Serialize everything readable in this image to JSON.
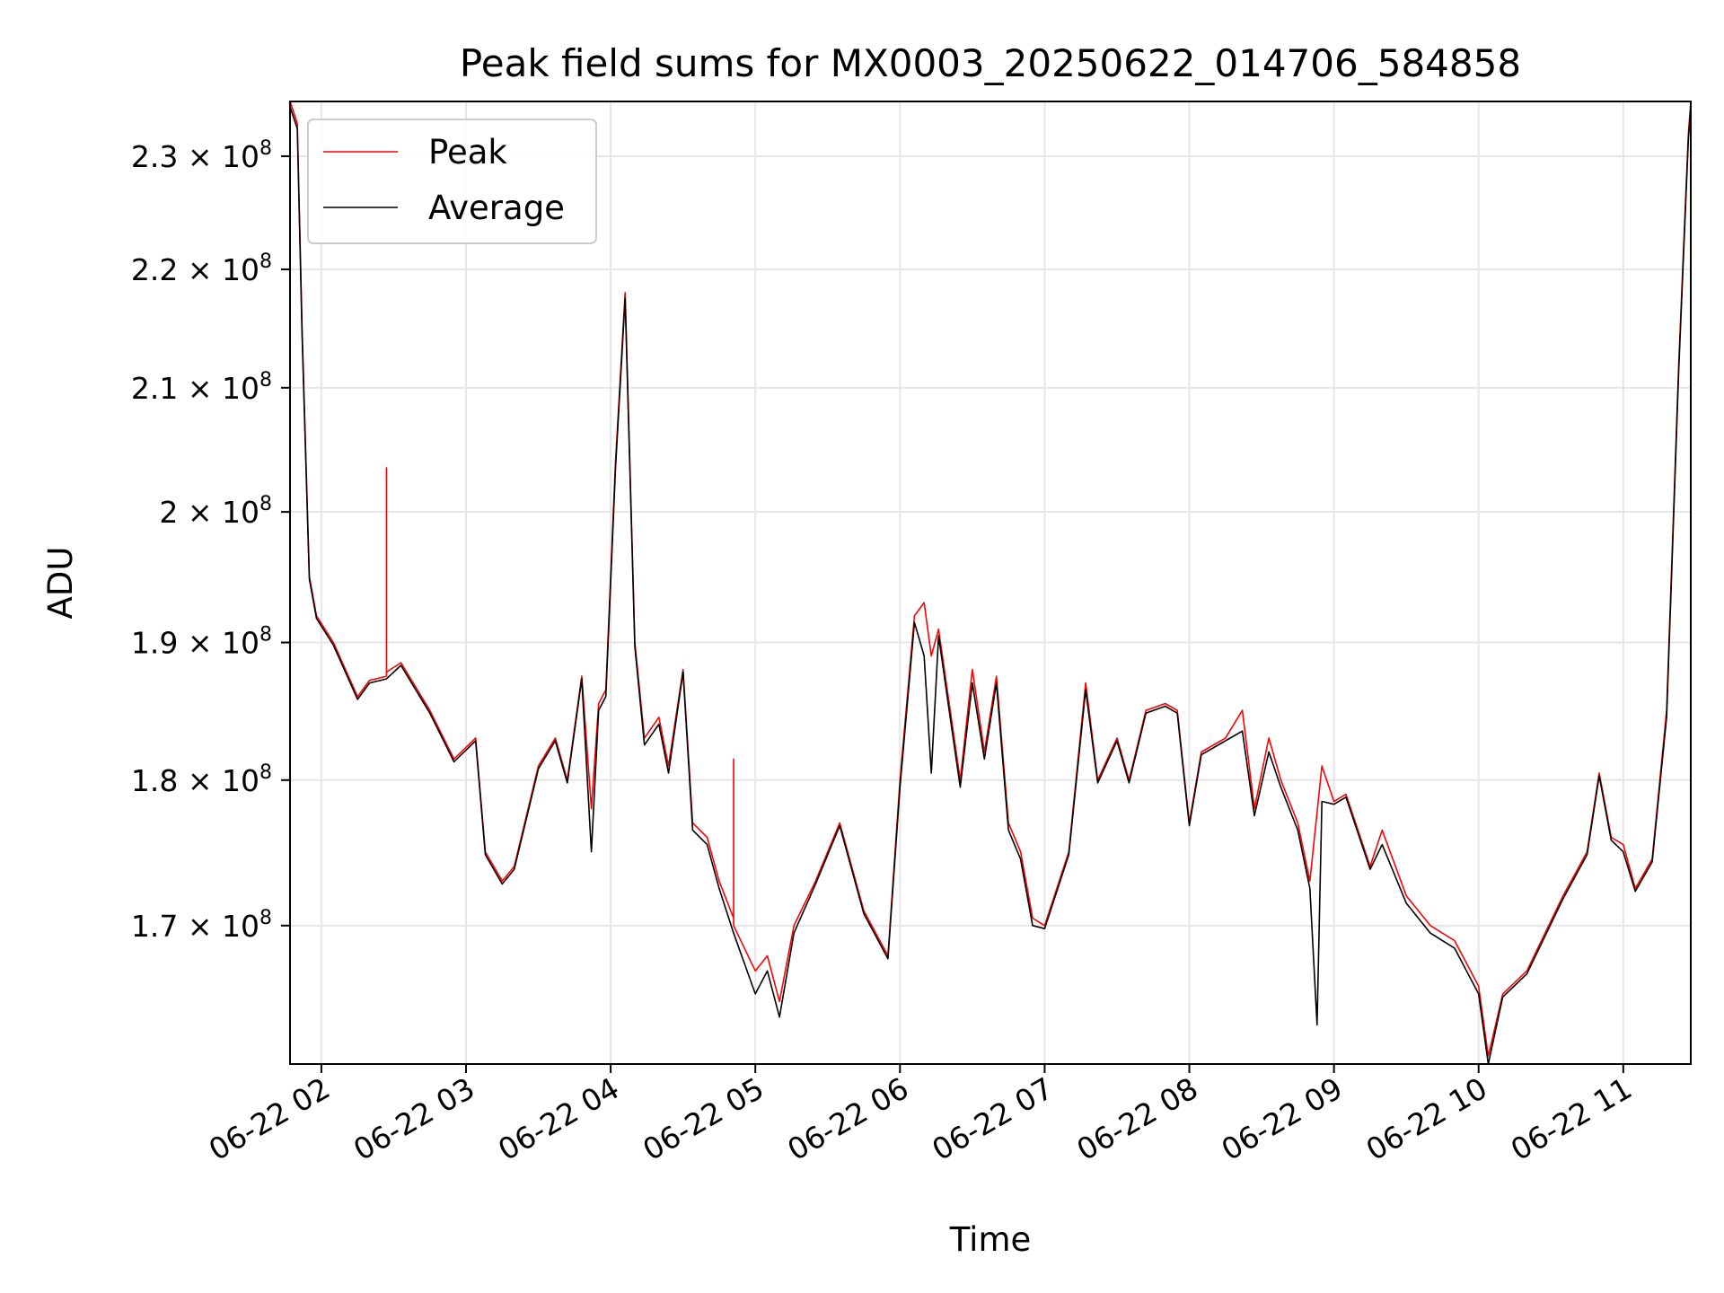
{
  "chart_data": {
    "type": "line",
    "title": "Peak field sums for MX0003_20250622_014706_584858",
    "xlabel": "Time",
    "ylabel": "ADU",
    "x_range": [
      "06-22 01:47",
      "06-22 11:28"
    ],
    "x_ticks": [
      "06-22 02",
      "06-22 03",
      "06-22 04",
      "06-22 05",
      "06-22 06",
      "06-22 07",
      "06-22 08",
      "06-22 09",
      "06-22 10",
      "06-22 11"
    ],
    "y_scale": "log",
    "ylim": [
      161000000,
      235000000
    ],
    "y_ticks": [
      {
        "value": 170000000,
        "coef": "1.7"
      },
      {
        "value": 180000000,
        "coef": "1.8"
      },
      {
        "value": 190000000,
        "coef": "1.9"
      },
      {
        "value": 200000000,
        "coef": "2"
      },
      {
        "value": 210000000,
        "coef": "2.1"
      },
      {
        "value": 220000000,
        "coef": "2.2"
      },
      {
        "value": 230000000,
        "coef": "2.3"
      }
    ],
    "y_tick_base": "10",
    "y_tick_exponent": "8",
    "grid": true,
    "legend_position": "top-left",
    "series": [
      {
        "name": "Peak",
        "color": "#ff0000",
        "points": [
          [
            "06-22 01:47",
            235000000
          ],
          [
            "06-22 01:50",
            233000000
          ],
          [
            "06-22 01:52",
            215000000
          ],
          [
            "06-22 01:55",
            195000000
          ],
          [
            "06-22 01:58",
            192000000
          ],
          [
            "06-22 02:05",
            190000000
          ],
          [
            "06-22 02:15",
            186000000
          ],
          [
            "06-22 02:20",
            187200000
          ],
          [
            "06-22 02:27",
            187500000
          ],
          [
            "06-22 02:27",
            203500000
          ],
          [
            "06-22 02:27",
            187800000
          ],
          [
            "06-22 02:33",
            188500000
          ],
          [
            "06-22 02:45",
            185000000
          ],
          [
            "06-22 02:55",
            181500000
          ],
          [
            "06-22 03:04",
            183000000
          ],
          [
            "06-22 03:08",
            175000000
          ],
          [
            "06-22 03:15",
            173000000
          ],
          [
            "06-22 03:20",
            174000000
          ],
          [
            "06-22 03:30",
            181000000
          ],
          [
            "06-22 03:37",
            183000000
          ],
          [
            "06-22 03:42",
            180000000
          ],
          [
            "06-22 03:48",
            187500000
          ],
          [
            "06-22 03:52",
            178000000
          ],
          [
            "06-22 03:55",
            185500000
          ],
          [
            "06-22 03:58",
            186500000
          ],
          [
            "06-22 04:02",
            204000000
          ],
          [
            "06-22 04:06",
            218000000
          ],
          [
            "06-22 04:10",
            190000000
          ],
          [
            "06-22 04:14",
            183000000
          ],
          [
            "06-22 04:20",
            184500000
          ],
          [
            "06-22 04:24",
            181000000
          ],
          [
            "06-22 04:30",
            188000000
          ],
          [
            "06-22 04:34",
            177000000
          ],
          [
            "06-22 04:40",
            176000000
          ],
          [
            "06-22 04:45",
            173000000
          ],
          [
            "06-22 04:51",
            170500000
          ],
          [
            "06-22 04:51",
            181500000
          ],
          [
            "06-22 04:51",
            170000000
          ],
          [
            "06-22 05:00",
            167000000
          ],
          [
            "06-22 05:05",
            168000000
          ],
          [
            "06-22 05:10",
            165000000
          ],
          [
            "06-22 05:16",
            170000000
          ],
          [
            "06-22 05:25",
            173000000
          ],
          [
            "06-22 05:35",
            177000000
          ],
          [
            "06-22 05:45",
            171000000
          ],
          [
            "06-22 05:55",
            168000000
          ],
          [
            "06-22 06:00",
            180000000
          ],
          [
            "06-22 06:06",
            192000000
          ],
          [
            "06-22 06:10",
            193000000
          ],
          [
            "06-22 06:13",
            189000000
          ],
          [
            "06-22 06:16",
            191000000
          ],
          [
            "06-22 06:20",
            186000000
          ],
          [
            "06-22 06:25",
            180000000
          ],
          [
            "06-22 06:30",
            188000000
          ],
          [
            "06-22 06:35",
            182000000
          ],
          [
            "06-22 06:40",
            187500000
          ],
          [
            "06-22 06:45",
            177000000
          ],
          [
            "06-22 06:50",
            175000000
          ],
          [
            "06-22 06:55",
            170500000
          ],
          [
            "06-22 07:00",
            170000000
          ],
          [
            "06-22 07:10",
            175000000
          ],
          [
            "06-22 07:17",
            187000000
          ],
          [
            "06-22 07:22",
            180000000
          ],
          [
            "06-22 07:30",
            183000000
          ],
          [
            "06-22 07:35",
            180000000
          ],
          [
            "06-22 07:42",
            185000000
          ],
          [
            "06-22 07:50",
            185500000
          ],
          [
            "06-22 07:55",
            185000000
          ],
          [
            "06-22 08:00",
            177000000
          ],
          [
            "06-22 08:05",
            182000000
          ],
          [
            "06-22 08:15",
            183000000
          ],
          [
            "06-22 08:22",
            185000000
          ],
          [
            "06-22 08:27",
            178000000
          ],
          [
            "06-22 08:33",
            183000000
          ],
          [
            "06-22 08:38",
            180000000
          ],
          [
            "06-22 08:45",
            177000000
          ],
          [
            "06-22 08:50",
            173000000
          ],
          [
            "06-22 08:55",
            181000000
          ],
          [
            "06-22 09:00",
            178500000
          ],
          [
            "06-22 09:05",
            179000000
          ],
          [
            "06-22 09:15",
            174000000
          ],
          [
            "06-22 09:20",
            176500000
          ],
          [
            "06-22 09:30",
            172000000
          ],
          [
            "06-22 09:40",
            170000000
          ],
          [
            "06-22 09:50",
            169000000
          ],
          [
            "06-22 10:00",
            166000000
          ],
          [
            "06-22 10:04",
            161500000
          ],
          [
            "06-22 10:10",
            165500000
          ],
          [
            "06-22 10:20",
            167000000
          ],
          [
            "06-22 10:35",
            172000000
          ],
          [
            "06-22 10:45",
            175000000
          ],
          [
            "06-22 10:50",
            180500000
          ],
          [
            "06-22 10:55",
            176000000
          ],
          [
            "06-22 11:00",
            175500000
          ],
          [
            "06-22 11:05",
            172500000
          ],
          [
            "06-22 11:12",
            174500000
          ],
          [
            "06-22 11:18",
            185000000
          ],
          [
            "06-22 11:23",
            212000000
          ],
          [
            "06-22 11:27",
            232000000
          ],
          [
            "06-22 11:28",
            235000000
          ]
        ]
      },
      {
        "name": "Average",
        "color": "#000000",
        "points": [
          [
            "06-22 01:47",
            234500000
          ],
          [
            "06-22 01:50",
            232500000
          ],
          [
            "06-22 01:52",
            214500000
          ],
          [
            "06-22 01:55",
            194800000
          ],
          [
            "06-22 01:58",
            191800000
          ],
          [
            "06-22 02:05",
            189800000
          ],
          [
            "06-22 02:15",
            185800000
          ],
          [
            "06-22 02:20",
            187000000
          ],
          [
            "06-22 02:27",
            187300000
          ],
          [
            "06-22 02:33",
            188300000
          ],
          [
            "06-22 02:45",
            184800000
          ],
          [
            "06-22 02:55",
            181300000
          ],
          [
            "06-22 03:04",
            182800000
          ],
          [
            "06-22 03:08",
            174800000
          ],
          [
            "06-22 03:15",
            172800000
          ],
          [
            "06-22 03:20",
            173800000
          ],
          [
            "06-22 03:30",
            180800000
          ],
          [
            "06-22 03:37",
            182800000
          ],
          [
            "06-22 03:42",
            179800000
          ],
          [
            "06-22 03:48",
            187300000
          ],
          [
            "06-22 03:52",
            175000000
          ],
          [
            "06-22 03:55",
            185000000
          ],
          [
            "06-22 03:58",
            186000000
          ],
          [
            "06-22 04:02",
            203500000
          ],
          [
            "06-22 04:06",
            217500000
          ],
          [
            "06-22 04:10",
            189700000
          ],
          [
            "06-22 04:14",
            182500000
          ],
          [
            "06-22 04:20",
            184000000
          ],
          [
            "06-22 04:24",
            180500000
          ],
          [
            "06-22 04:30",
            187800000
          ],
          [
            "06-22 04:34",
            176500000
          ],
          [
            "06-22 04:40",
            175500000
          ],
          [
            "06-22 04:45",
            172500000
          ],
          [
            "06-22 04:51",
            169500000
          ],
          [
            "06-22 05:00",
            165500000
          ],
          [
            "06-22 05:05",
            167000000
          ],
          [
            "06-22 05:10",
            164000000
          ],
          [
            "06-22 05:16",
            169500000
          ],
          [
            "06-22 05:25",
            172800000
          ],
          [
            "06-22 05:35",
            176800000
          ],
          [
            "06-22 05:45",
            170800000
          ],
          [
            "06-22 05:55",
            167800000
          ],
          [
            "06-22 06:00",
            179500000
          ],
          [
            "06-22 06:06",
            191500000
          ],
          [
            "06-22 06:10",
            189000000
          ],
          [
            "06-22 06:13",
            180500000
          ],
          [
            "06-22 06:16",
            190500000
          ],
          [
            "06-22 06:20",
            185500000
          ],
          [
            "06-22 06:25",
            179500000
          ],
          [
            "06-22 06:30",
            187000000
          ],
          [
            "06-22 06:35",
            181500000
          ],
          [
            "06-22 06:40",
            187000000
          ],
          [
            "06-22 06:45",
            176500000
          ],
          [
            "06-22 06:50",
            174500000
          ],
          [
            "06-22 06:55",
            170000000
          ],
          [
            "06-22 07:00",
            169800000
          ],
          [
            "06-22 07:10",
            174800000
          ],
          [
            "06-22 07:17",
            186500000
          ],
          [
            "06-22 07:22",
            179800000
          ],
          [
            "06-22 07:30",
            182800000
          ],
          [
            "06-22 07:35",
            179800000
          ],
          [
            "06-22 07:42",
            184800000
          ],
          [
            "06-22 07:50",
            185300000
          ],
          [
            "06-22 07:55",
            184800000
          ],
          [
            "06-22 08:00",
            176800000
          ],
          [
            "06-22 08:05",
            181800000
          ],
          [
            "06-22 08:15",
            182800000
          ],
          [
            "06-22 08:22",
            183500000
          ],
          [
            "06-22 08:27",
            177500000
          ],
          [
            "06-22 08:33",
            182000000
          ],
          [
            "06-22 08:38",
            179500000
          ],
          [
            "06-22 08:45",
            176500000
          ],
          [
            "06-22 08:50",
            172500000
          ],
          [
            "06-22 08:53",
            163500000
          ],
          [
            "06-22 08:55",
            178500000
          ],
          [
            "06-22 09:00",
            178300000
          ],
          [
            "06-22 09:05",
            178800000
          ],
          [
            "06-22 09:15",
            173800000
          ],
          [
            "06-22 09:20",
            175500000
          ],
          [
            "06-22 09:30",
            171500000
          ],
          [
            "06-22 09:40",
            169500000
          ],
          [
            "06-22 09:50",
            168500000
          ],
          [
            "06-22 10:00",
            165500000
          ],
          [
            "06-22 10:04",
            161000000
          ],
          [
            "06-22 10:10",
            165300000
          ],
          [
            "06-22 10:20",
            166800000
          ],
          [
            "06-22 10:35",
            171800000
          ],
          [
            "06-22 10:45",
            174800000
          ],
          [
            "06-22 10:50",
            180300000
          ],
          [
            "06-22 10:55",
            175800000
          ],
          [
            "06-22 11:00",
            175000000
          ],
          [
            "06-22 11:05",
            172300000
          ],
          [
            "06-22 11:12",
            174300000
          ],
          [
            "06-22 11:18",
            184500000
          ],
          [
            "06-22 11:23",
            211500000
          ],
          [
            "06-22 11:27",
            231500000
          ],
          [
            "06-22 11:28",
            234500000
          ]
        ]
      }
    ]
  }
}
